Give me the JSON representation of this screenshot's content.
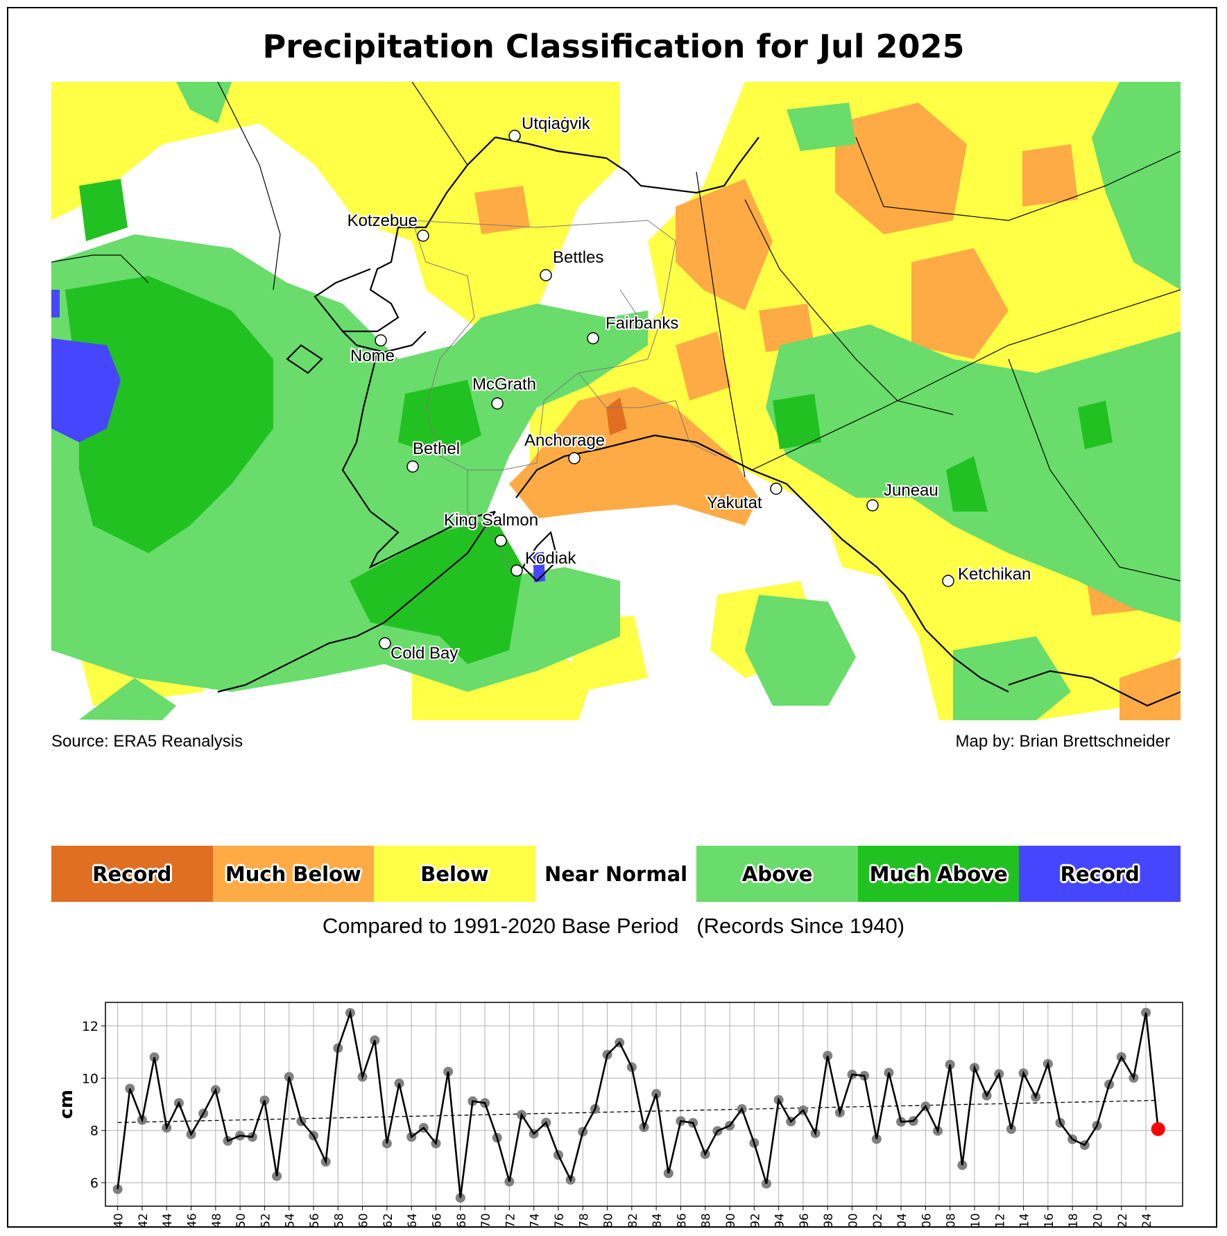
{
  "title": "Precipitation Classification for Jul 2025",
  "source": "Source: ERA5 Reanalysis",
  "map_by": "Map by: Brian Brettschneider",
  "map": {
    "cities": [
      {
        "name": "Utqiaġvik"
      },
      {
        "name": "Kotzebue"
      },
      {
        "name": "Bettles"
      },
      {
        "name": "Fairbanks"
      },
      {
        "name": "Nome"
      },
      {
        "name": "McGrath"
      },
      {
        "name": "Bethel"
      },
      {
        "name": "Anchorage"
      },
      {
        "name": "Yakutat"
      },
      {
        "name": "Juneau"
      },
      {
        "name": "King Salmon"
      },
      {
        "name": "Kodiak"
      },
      {
        "name": "Ketchikan"
      },
      {
        "name": "Cold Bay"
      }
    ],
    "category_colors": {
      "record_dry": "#e06f22",
      "much_below": "#ffab45",
      "below": "#ffff46",
      "near_normal": "#ffffff",
      "above": "#69dc6b",
      "much_above": "#22c122",
      "record_wet": "#4646ff"
    }
  },
  "legend": {
    "items": [
      {
        "label": "Record",
        "color": "#e06f22"
      },
      {
        "label": "Much Below",
        "color": "#ffab45"
      },
      {
        "label": "Below",
        "color": "#ffff46"
      },
      {
        "label": "Near Normal",
        "color": "#ffffff"
      },
      {
        "label": "Above",
        "color": "#69dc6b"
      },
      {
        "label": "Much Above",
        "color": "#22c122"
      },
      {
        "label": "Record",
        "color": "#4646ff"
      }
    ],
    "subtitle": "Compared to 1991-2020 Base Period   (Records Since 1940)"
  },
  "chart_data": {
    "type": "line",
    "title": "",
    "xlabel": "",
    "ylabel": "cm",
    "ylim": [
      5.1,
      12.9
    ],
    "yticks": [
      6,
      8,
      10,
      12
    ],
    "xlim": [
      1939,
      2027
    ],
    "grid": true,
    "x": [
      1940,
      1941,
      1942,
      1943,
      1944,
      1945,
      1946,
      1947,
      1948,
      1949,
      1950,
      1951,
      1952,
      1953,
      1954,
      1955,
      1956,
      1957,
      1958,
      1959,
      1960,
      1961,
      1962,
      1963,
      1964,
      1965,
      1966,
      1967,
      1968,
      1969,
      1970,
      1971,
      1972,
      1973,
      1974,
      1975,
      1976,
      1977,
      1978,
      1979,
      1980,
      1981,
      1982,
      1983,
      1984,
      1985,
      1986,
      1987,
      1988,
      1989,
      1990,
      1991,
      1992,
      1993,
      1994,
      1995,
      1996,
      1997,
      1998,
      1999,
      2000,
      2001,
      2002,
      2003,
      2004,
      2005,
      2006,
      2007,
      2008,
      2009,
      2010,
      2011,
      2012,
      2013,
      2014,
      2015,
      2016,
      2017,
      2018,
      2019,
      2020,
      2021,
      2022,
      2023,
      2024,
      2025
    ],
    "series": [
      {
        "name": "July precipitation",
        "color": "#000000",
        "marker_color": "#808080",
        "values": [
          5.75,
          9.6,
          8.4,
          10.8,
          8.1,
          9.05,
          7.85,
          8.65,
          9.55,
          7.6,
          7.8,
          7.75,
          9.15,
          6.25,
          10.05,
          8.35,
          7.8,
          6.8,
          11.15,
          12.5,
          10.05,
          11.45,
          7.5,
          9.8,
          7.75,
          8.1,
          7.5,
          10.25,
          5.42,
          9.12,
          9.05,
          7.72,
          6.04,
          8.6,
          7.87,
          8.3,
          7.06,
          6.11,
          7.95,
          8.82,
          10.9,
          11.36,
          10.42,
          8.12,
          9.4,
          6.36,
          8.36,
          8.29,
          7.09,
          7.98,
          8.18,
          8.82,
          7.52,
          5.96,
          9.17,
          8.34,
          8.77,
          7.89,
          10.86,
          8.68,
          10.14,
          10.09,
          7.67,
          10.21,
          8.33,
          8.36,
          8.92,
          7.98,
          10.52,
          6.67,
          10.4,
          9.33,
          10.16,
          8.05,
          10.19,
          9.28,
          10.55,
          8.29,
          7.66,
          7.44,
          8.18,
          9.76,
          10.81,
          10.01,
          12.51,
          8.05
        ]
      },
      {
        "name": "trend",
        "style": "dashed",
        "color": "#000000",
        "x": [
          1940,
          2025
        ],
        "values": [
          8.3,
          9.15
        ]
      }
    ],
    "highlight": {
      "x": 2025,
      "value": 8.05,
      "color": "#ff0000"
    },
    "xticks": [
      1940,
      1942,
      1944,
      1946,
      1948,
      1950,
      1952,
      1954,
      1956,
      1958,
      1960,
      1962,
      1964,
      1966,
      1968,
      1970,
      1972,
      1974,
      1976,
      1978,
      1980,
      1982,
      1984,
      1986,
      1988,
      1990,
      1992,
      1994,
      1996,
      1998,
      2000,
      2002,
      2004,
      2006,
      2008,
      2010,
      2012,
      2014,
      2016,
      2018,
      2020,
      2022,
      2024
    ]
  }
}
